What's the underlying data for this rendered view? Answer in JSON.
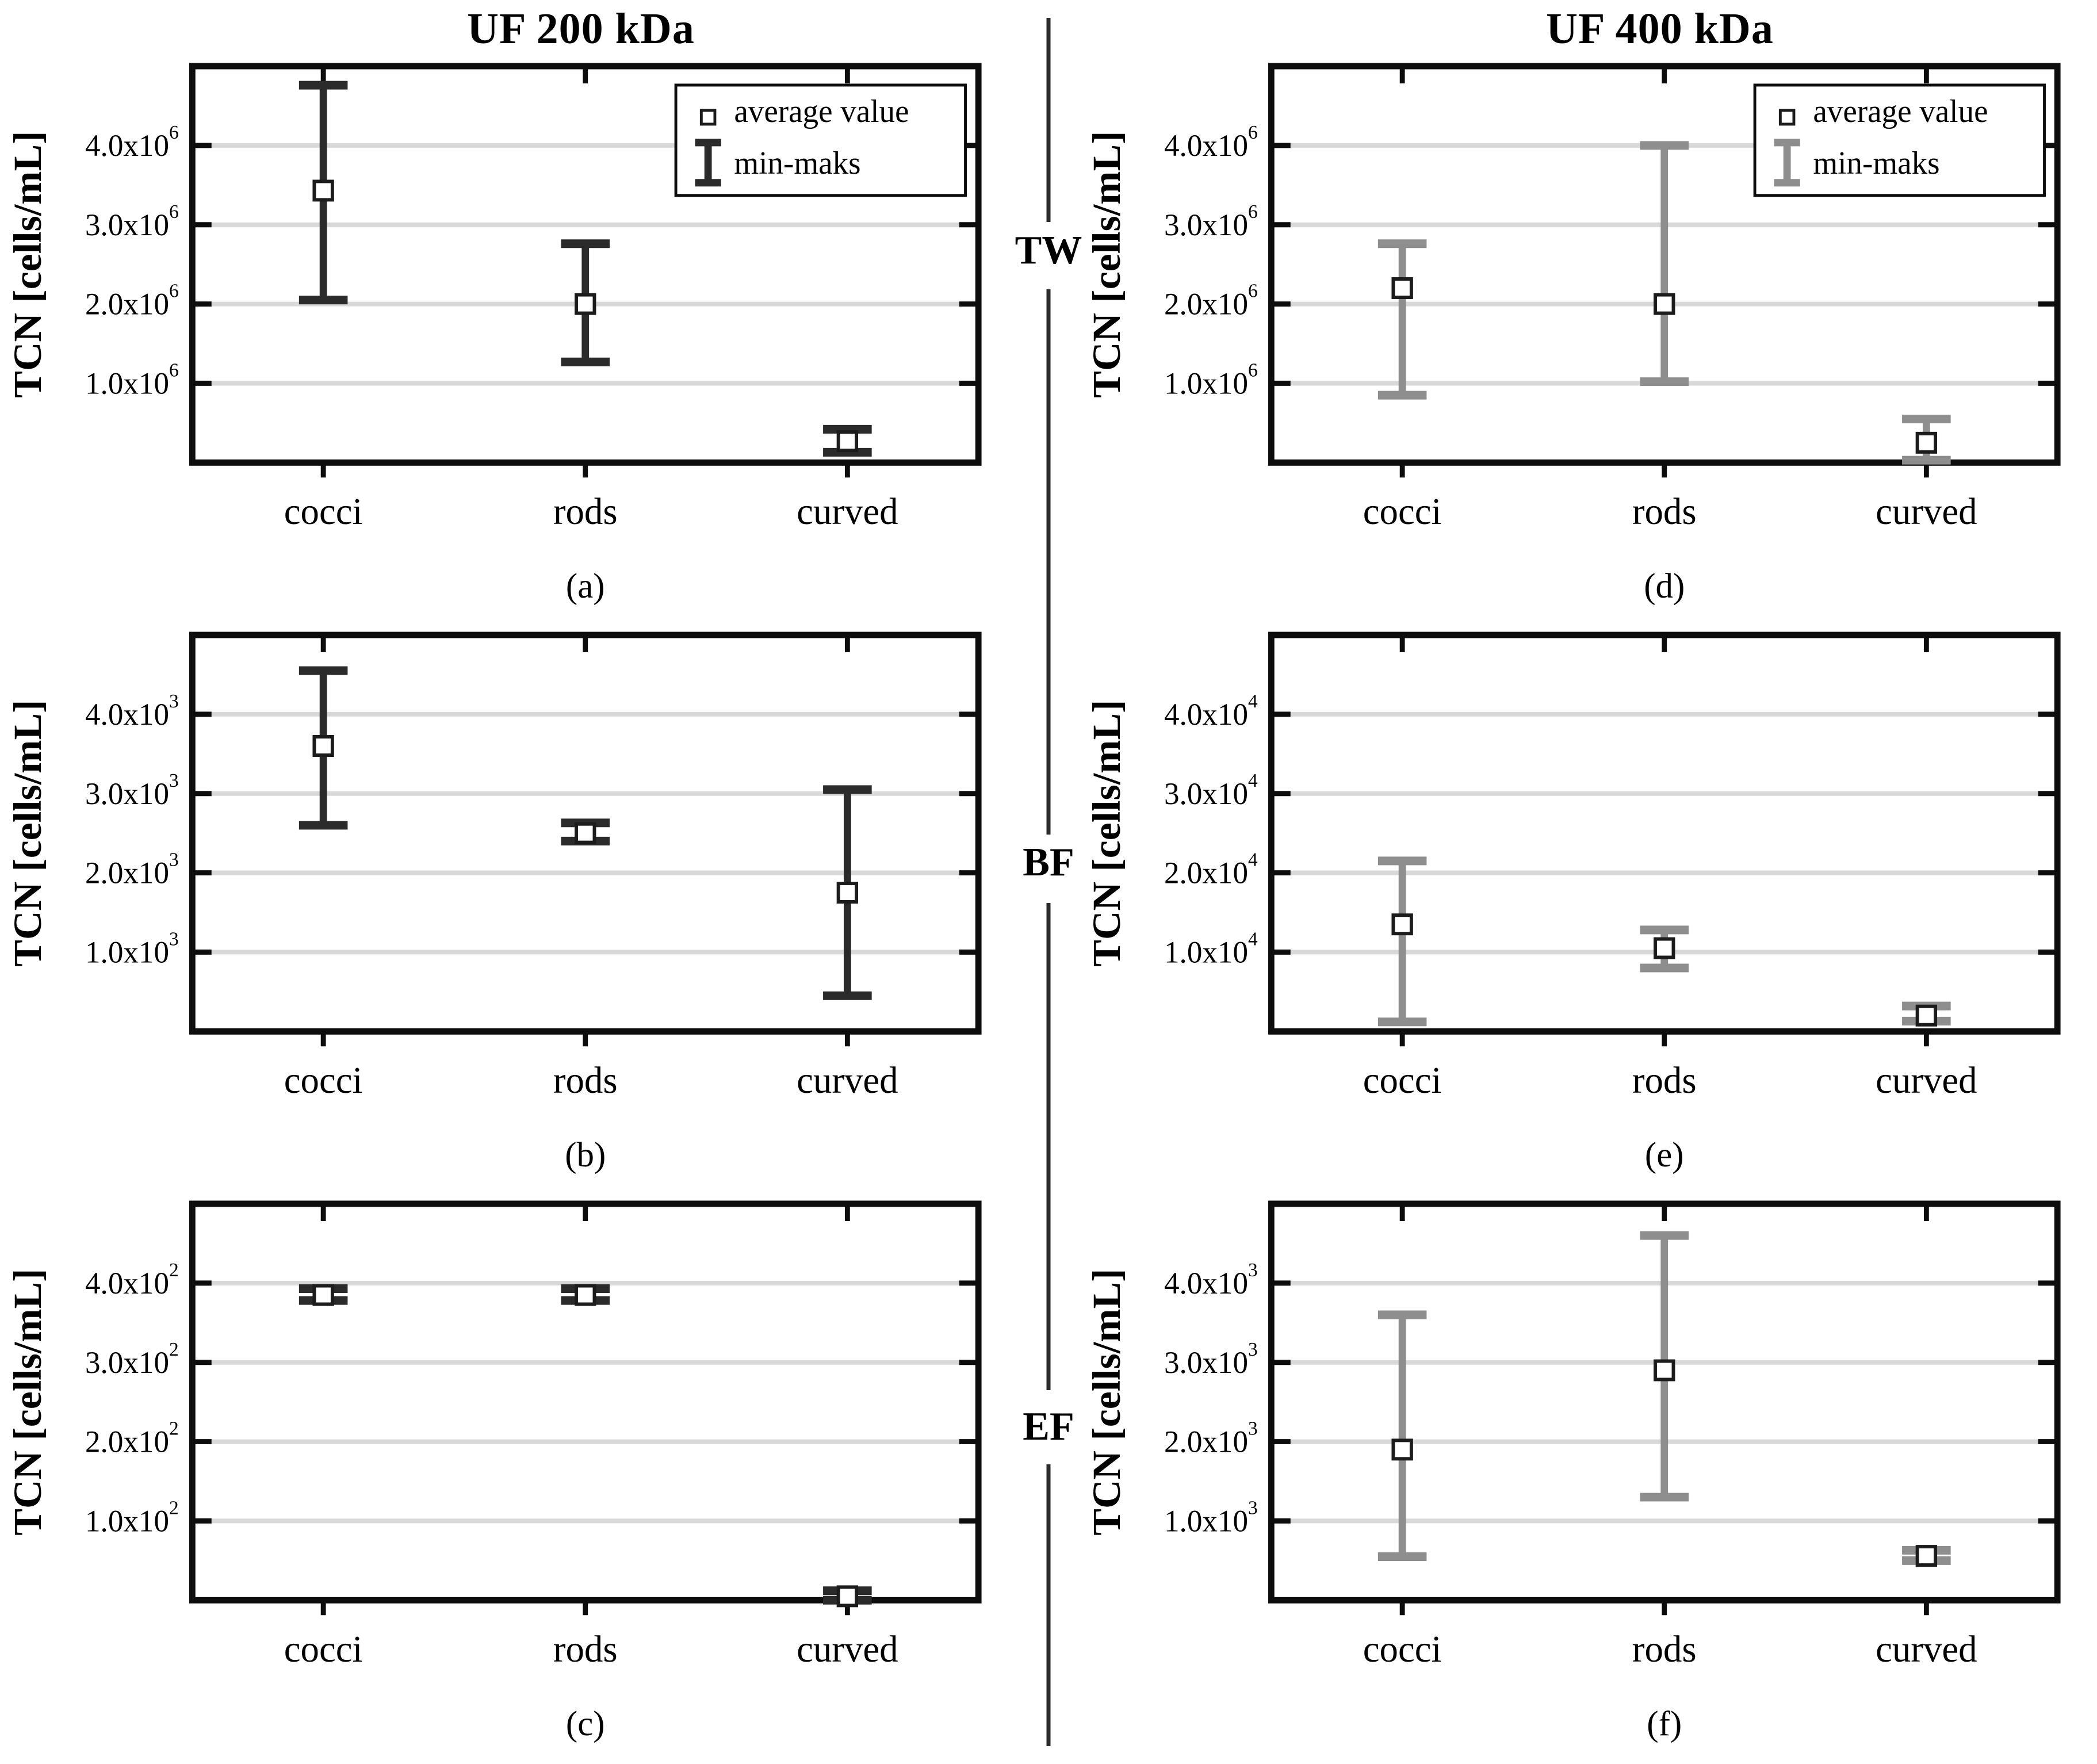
{
  "figure": {
    "columns": [
      {
        "title": "UF 200 kDa"
      },
      {
        "title": "UF 400 kDa"
      }
    ],
    "row_labels": [
      "TW",
      "BF",
      "EF"
    ],
    "ylabel": "TCN [cells/mL]",
    "categories": [
      "cocci",
      "rods",
      "curved"
    ],
    "legend": {
      "average_label": "average value",
      "range_label": "min-maks",
      "average_marker": "open-square-icon",
      "range_marker": "ibeam-errorbar-icon"
    },
    "colors": {
      "dark_series": "#2b2b2b",
      "gray_series": "#8e8e8e",
      "marker_stroke": "#1c1c1c",
      "marker_fill": "#ffffff",
      "grid": "#d9d9d9",
      "axis": "#0d0d0d",
      "text": "#000000"
    }
  },
  "chart_data": [
    {
      "id": "a",
      "type": "errorbar",
      "panel_label": "(a)",
      "row": "TW",
      "column": "UF 200 kDa",
      "series": "dark",
      "legend": true,
      "ylim": [
        0,
        5000000
      ],
      "ytick_values": [
        1000000,
        2000000,
        3000000,
        4000000
      ],
      "ytick_mantissas": [
        "1.0",
        "2.0",
        "3.0",
        "4.0"
      ],
      "exponent_label": "6",
      "categories": [
        "cocci",
        "rods",
        "curved"
      ],
      "points": [
        {
          "category": "cocci",
          "min": 2050000,
          "avg": 3430000,
          "max": 4760000
        },
        {
          "category": "rods",
          "min": 1270000,
          "avg": 2000000,
          "max": 2760000
        },
        {
          "category": "curved",
          "min": 130000,
          "avg": 270000,
          "max": 420000
        }
      ]
    },
    {
      "id": "b",
      "type": "errorbar",
      "panel_label": "(b)",
      "row": "BF",
      "column": "UF 200 kDa",
      "series": "dark",
      "legend": false,
      "ylim": [
        0,
        5000
      ],
      "ytick_values": [
        1000,
        2000,
        3000,
        4000
      ],
      "ytick_mantissas": [
        "1.0",
        "2.0",
        "3.0",
        "4.0"
      ],
      "exponent_label": "3",
      "categories": [
        "cocci",
        "rods",
        "curved"
      ],
      "points": [
        {
          "category": "cocci",
          "min": 2600,
          "avg": 3600,
          "max": 4550
        },
        {
          "category": "rods",
          "min": 2400,
          "avg": 2500,
          "max": 2630
        },
        {
          "category": "curved",
          "min": 450,
          "avg": 1750,
          "max": 3050
        }
      ]
    },
    {
      "id": "c",
      "type": "errorbar",
      "panel_label": "(c)",
      "row": "EF",
      "column": "UF 200 kDa",
      "series": "dark",
      "legend": false,
      "ylim": [
        0,
        500
      ],
      "ytick_values": [
        100,
        200,
        300,
        400
      ],
      "ytick_mantissas": [
        "1.0",
        "2.0",
        "3.0",
        "4.0"
      ],
      "exponent_label": "2",
      "categories": [
        "cocci",
        "rods",
        "curved"
      ],
      "points": [
        {
          "category": "cocci",
          "min": 378,
          "avg": 385,
          "max": 393
        },
        {
          "category": "rods",
          "min": 378,
          "avg": 385,
          "max": 393
        },
        {
          "category": "curved",
          "min": 0,
          "avg": 5,
          "max": 12
        }
      ]
    },
    {
      "id": "d",
      "type": "errorbar",
      "panel_label": "(d)",
      "row": "TW",
      "column": "UF 400 kDa",
      "series": "gray",
      "legend": true,
      "ylim": [
        0,
        5000000
      ],
      "ytick_values": [
        1000000,
        2000000,
        3000000,
        4000000
      ],
      "ytick_mantissas": [
        "1.0",
        "2.0",
        "3.0",
        "4.0"
      ],
      "exponent_label": "6",
      "categories": [
        "cocci",
        "rods",
        "curved"
      ],
      "points": [
        {
          "category": "cocci",
          "min": 850000,
          "avg": 2200000,
          "max": 2760000
        },
        {
          "category": "rods",
          "min": 1020000,
          "avg": 2000000,
          "max": 4000000
        },
        {
          "category": "curved",
          "min": 30000,
          "avg": 250000,
          "max": 550000
        }
      ]
    },
    {
      "id": "e",
      "type": "errorbar",
      "panel_label": "(e)",
      "row": "BF",
      "column": "UF 400 kDa",
      "series": "gray",
      "legend": false,
      "ylim": [
        0,
        50000
      ],
      "ytick_values": [
        10000,
        20000,
        30000,
        40000
      ],
      "ytick_mantissas": [
        "1.0",
        "2.0",
        "3.0",
        "4.0"
      ],
      "exponent_label": "4",
      "categories": [
        "cocci",
        "rods",
        "curved"
      ],
      "points": [
        {
          "category": "cocci",
          "min": 1200,
          "avg": 13500,
          "max": 21500
        },
        {
          "category": "rods",
          "min": 8000,
          "avg": 10500,
          "max": 12800
        },
        {
          "category": "curved",
          "min": 1300,
          "avg": 2000,
          "max": 3200
        }
      ]
    },
    {
      "id": "f",
      "type": "errorbar",
      "panel_label": "(f)",
      "row": "EF",
      "column": "UF 400 kDa",
      "series": "gray",
      "legend": false,
      "ylim": [
        0,
        5000
      ],
      "ytick_values": [
        1000,
        2000,
        3000,
        4000
      ],
      "ytick_mantissas": [
        "1.0",
        "2.0",
        "3.0",
        "4.0"
      ],
      "exponent_label": "3",
      "categories": [
        "cocci",
        "rods",
        "curved"
      ],
      "points": [
        {
          "category": "cocci",
          "min": 550,
          "avg": 1900,
          "max": 3600
        },
        {
          "category": "rods",
          "min": 1300,
          "avg": 2900,
          "max": 4600
        },
        {
          "category": "curved",
          "min": 500,
          "avg": 560,
          "max": 630
        }
      ]
    }
  ]
}
